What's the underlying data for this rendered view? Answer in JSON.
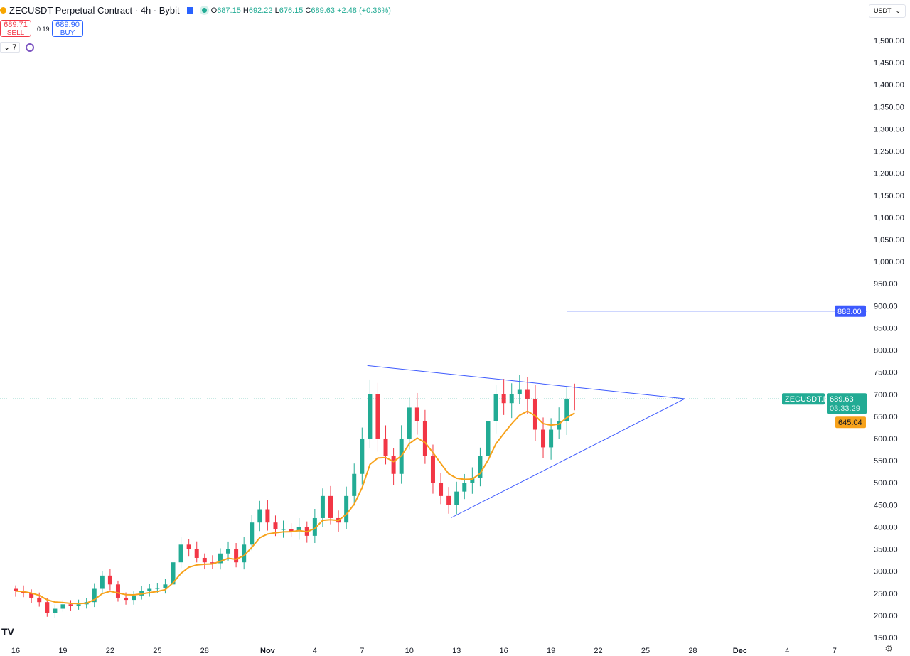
{
  "header": {
    "symbol_title": "ZECUSDT Perpetual Contract · 4h · Bybit",
    "open_label": "O",
    "open": "687.15",
    "high_label": "H",
    "high": "692.22",
    "low_label": "L",
    "low": "676.15",
    "close_label": "C",
    "close": "689.63",
    "change": "+2.48 (+0.36%)"
  },
  "trade": {
    "sell_price": "689.71",
    "sell_label": "SELL",
    "spread": "0.19",
    "buy_price": "689.90",
    "buy_label": "BUY"
  },
  "indicator_count": "⌄ 7",
  "currency_selector": "USDT",
  "logo_text": "TV",
  "colors": {
    "up": "#22ab94",
    "down": "#f23645",
    "ema": "#f7a21b",
    "trendline": "#3d5afe",
    "price_label": "#22ab94"
  },
  "chart_data": {
    "type": "candlestick",
    "timeframe": "4h",
    "y_ticks": [
      150,
      200,
      250,
      300,
      350,
      400,
      450,
      500,
      550,
      600,
      650,
      700,
      750,
      800,
      850,
      900,
      950,
      1000,
      1050,
      1100,
      1150,
      1200,
      1250,
      1300,
      1350,
      1400,
      1450,
      1500
    ],
    "ylim": [
      150,
      1500
    ],
    "x_ticks": [
      {
        "date": "10-16",
        "label": "16"
      },
      {
        "date": "10-19",
        "label": "19"
      },
      {
        "date": "10-22",
        "label": "22"
      },
      {
        "date": "10-25",
        "label": "25"
      },
      {
        "date": "10-28",
        "label": "28"
      },
      {
        "date": "11-01",
        "label": "Nov"
      },
      {
        "date": "11-04",
        "label": "4"
      },
      {
        "date": "11-07",
        "label": "7"
      },
      {
        "date": "11-10",
        "label": "10"
      },
      {
        "date": "11-13",
        "label": "13"
      },
      {
        "date": "11-16",
        "label": "16"
      },
      {
        "date": "11-19",
        "label": "19"
      },
      {
        "date": "11-22",
        "label": "22"
      },
      {
        "date": "11-25",
        "label": "25"
      },
      {
        "date": "11-28",
        "label": "28"
      },
      {
        "date": "12-01",
        "label": "Dec"
      },
      {
        "date": "12-04",
        "label": "4"
      },
      {
        "date": "12-07",
        "label": "7"
      }
    ],
    "candles_12h_close": [
      255,
      250,
      240,
      230,
      205,
      215,
      225,
      222,
      225,
      230,
      260,
      290,
      270,
      240,
      235,
      245,
      255,
      260,
      262,
      270,
      320,
      360,
      350,
      330,
      320,
      318,
      340,
      350,
      320,
      360,
      410,
      440,
      410,
      395,
      395,
      390,
      400,
      380,
      420,
      470,
      420,
      410,
      470,
      520,
      600,
      700,
      600,
      560,
      520,
      600,
      670,
      640,
      560,
      500,
      470,
      450,
      480,
      500,
      510,
      560,
      640,
      700,
      680,
      700,
      710,
      690,
      620,
      580,
      620,
      640,
      690,
      689.63
    ],
    "candles_start": "10-16 00:00",
    "moving_average": {
      "label": "645.04"
    },
    "last_price": {
      "symbol": "ZECUSDT.P",
      "value": "689.63",
      "countdown": "03:33:29"
    },
    "horizontal_line": {
      "price": 888,
      "label": "888.00",
      "start": "11-20 00:00"
    },
    "triangle": {
      "upper": [
        {
          "date": "11-07 08:00",
          "price": 765
        },
        {
          "date": "11-27 12:00",
          "price": 690
        }
      ],
      "lower": [
        {
          "date": "11-12 16:00",
          "price": 421
        },
        {
          "date": "11-27 12:00",
          "price": 690
        }
      ]
    }
  }
}
